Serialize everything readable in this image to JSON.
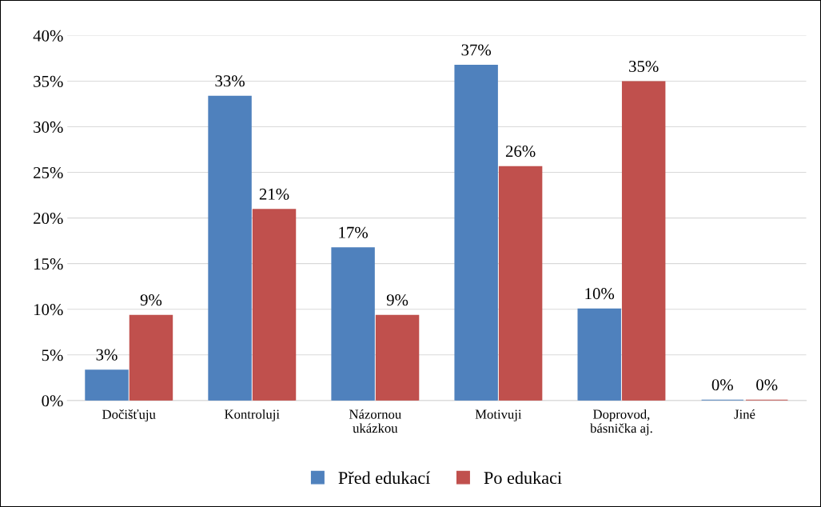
{
  "chart_data": {
    "type": "bar",
    "categories": [
      "Dočišťuju",
      "Kontroluji",
      "Názornou\nukázkou",
      "Motivuji",
      "Doprovod,\nbásnička aj.",
      "Jiné"
    ],
    "series": [
      {
        "name": "Před edukací",
        "color": "#4f81bd",
        "values": [
          3.3,
          33.3,
          16.7,
          36.7,
          10.0,
          0
        ],
        "value_labels": [
          "3%",
          "33%",
          "17%",
          "37%",
          "10%",
          "0%"
        ]
      },
      {
        "name": "Po edukaci",
        "color": "#c0504d",
        "values": [
          9.3,
          20.9,
          9.3,
          25.6,
          34.9,
          0
        ],
        "value_labels": [
          "9%",
          "21%",
          "9%",
          "26%",
          "35%",
          "0%"
        ]
      }
    ],
    "ylim": [
      0,
      40
    ],
    "yticks": [
      {
        "value": 0,
        "label": "0%"
      },
      {
        "value": 5,
        "label": "5%"
      },
      {
        "value": 10,
        "label": "10%"
      },
      {
        "value": 15,
        "label": "15%"
      },
      {
        "value": 20,
        "label": "20%"
      },
      {
        "value": 25,
        "label": "25%"
      },
      {
        "value": 30,
        "label": "30%"
      },
      {
        "value": 35,
        "label": "35%"
      },
      {
        "value": 40,
        "label": "40%"
      }
    ],
    "grid": "y",
    "legend": "bottom"
  }
}
